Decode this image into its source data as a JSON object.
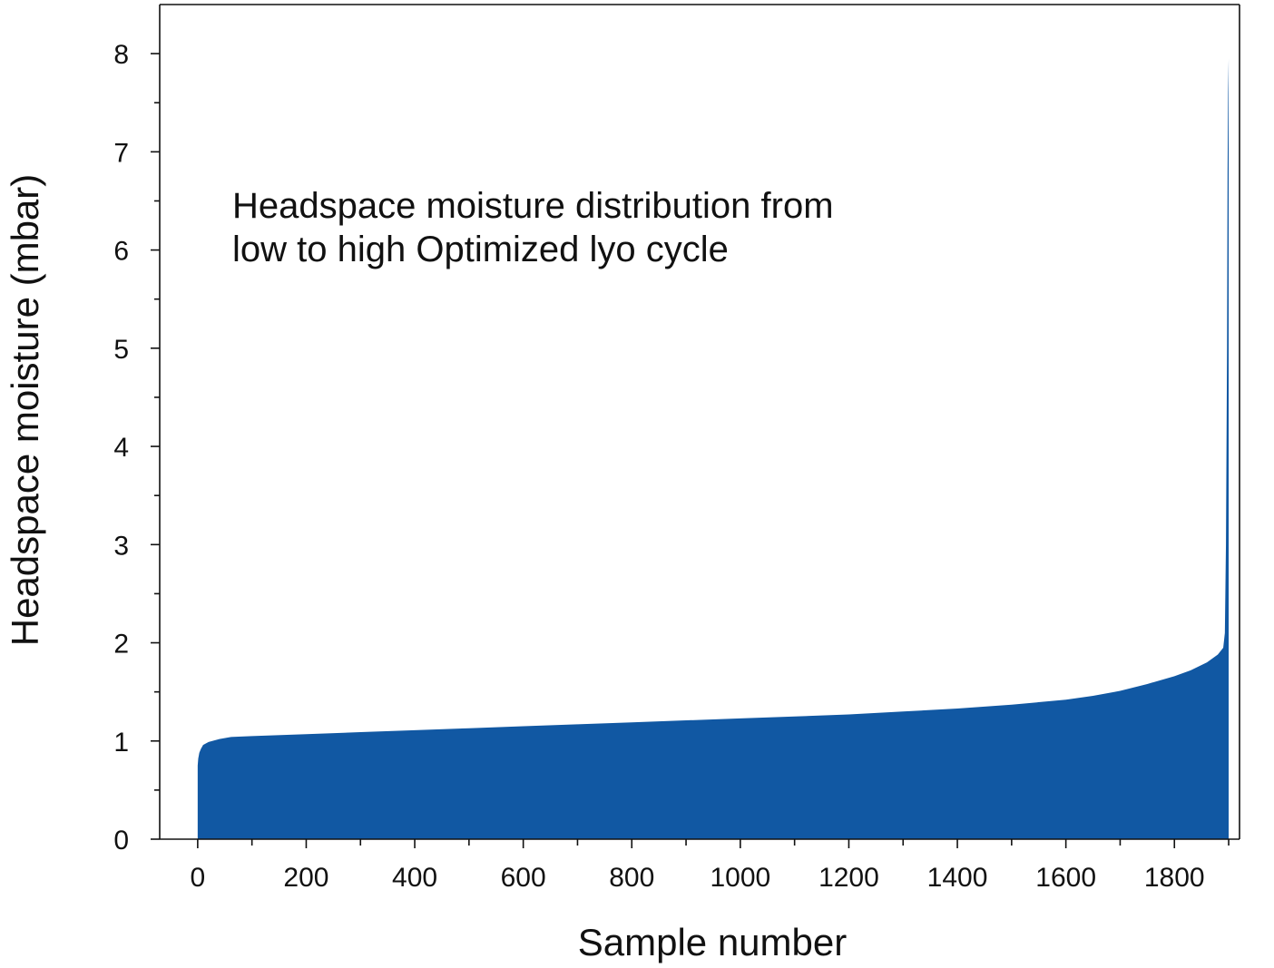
{
  "chart_data": {
    "type": "area",
    "xlabel": "Sample number",
    "ylabel": "Headspace moisture (mbar)",
    "annotation": [
      "Headspace moisture distribution from",
      "low to high Optimized lyo cycle"
    ],
    "xlim": [
      -70,
      1920
    ],
    "ylim": [
      0,
      8.5
    ],
    "xticks": [
      0,
      200,
      400,
      600,
      800,
      1000,
      1200,
      1400,
      1600,
      1800
    ],
    "xticks_minor": [
      100,
      300,
      500,
      700,
      900,
      1100,
      1300,
      1500,
      1700,
      1900
    ],
    "yticks": [
      0,
      1,
      2,
      3,
      4,
      5,
      6,
      7,
      8
    ],
    "yticks_minor": [
      0.5,
      1.5,
      2.5,
      3.5,
      4.5,
      5.5,
      6.5,
      7.5
    ],
    "grid": false,
    "colors": {
      "fill": "#1158a3"
    },
    "series": [
      {
        "x": [
          0,
          1,
          3,
          6,
          10,
          20,
          40,
          60,
          100,
          200,
          300,
          400,
          500,
          600,
          700,
          800,
          900,
          1000,
          1100,
          1200,
          1300,
          1400,
          1500,
          1600,
          1650,
          1700,
          1750,
          1800,
          1830,
          1860,
          1880,
          1890,
          1893,
          1895,
          1897,
          1898,
          1899,
          1900
        ],
        "values": [
          0.75,
          0.82,
          0.88,
          0.92,
          0.96,
          0.99,
          1.02,
          1.04,
          1.05,
          1.07,
          1.09,
          1.11,
          1.13,
          1.15,
          1.17,
          1.19,
          1.21,
          1.23,
          1.25,
          1.27,
          1.3,
          1.33,
          1.37,
          1.42,
          1.46,
          1.51,
          1.58,
          1.66,
          1.72,
          1.8,
          1.88,
          1.95,
          2.1,
          3.0,
          5.0,
          6.8,
          7.6,
          7.95
        ]
      }
    ]
  }
}
